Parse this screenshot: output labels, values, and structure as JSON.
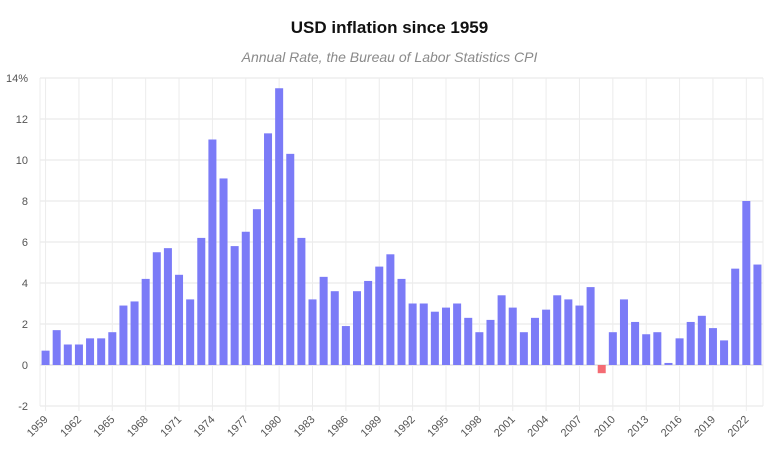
{
  "chart_data": {
    "type": "bar",
    "title": "USD inflation since 1959",
    "subtitle": "Annual Rate, the Bureau of Labor Statistics CPI",
    "xlabel": "",
    "ylabel": "",
    "ylim": [
      -2,
      14
    ],
    "y_ticks": [
      "-2",
      "0",
      "2",
      "4",
      "6",
      "8",
      "10",
      "12",
      "14%"
    ],
    "grid": true,
    "positive_color": "#7b7bf7",
    "negative_color": "#f46b73",
    "categories": [
      "1959",
      "1960",
      "1961",
      "1962",
      "1963",
      "1964",
      "1965",
      "1966",
      "1967",
      "1968",
      "1969",
      "1970",
      "1971",
      "1972",
      "1973",
      "1974",
      "1975",
      "1976",
      "1977",
      "1978",
      "1979",
      "1980",
      "1981",
      "1982",
      "1983",
      "1984",
      "1985",
      "1986",
      "1987",
      "1988",
      "1989",
      "1990",
      "1991",
      "1992",
      "1993",
      "1994",
      "1995",
      "1996",
      "1997",
      "1998",
      "1999",
      "2000",
      "2001",
      "2002",
      "2003",
      "2004",
      "2005",
      "2006",
      "2007",
      "2008",
      "2009",
      "2010",
      "2011",
      "2012",
      "2013",
      "2014",
      "2015",
      "2016",
      "2017",
      "2018",
      "2019",
      "2020",
      "2021",
      "2022",
      "2023"
    ],
    "x_tick_labels": [
      "1959",
      "1962",
      "1965",
      "1968",
      "1971",
      "1974",
      "1977",
      "1980",
      "1983",
      "1986",
      "1989",
      "1992",
      "1995",
      "1998",
      "2001",
      "2004",
      "2007",
      "2010",
      "2013",
      "2016",
      "2019",
      "2022"
    ],
    "values": [
      0.7,
      1.7,
      1.0,
      1.0,
      1.3,
      1.3,
      1.6,
      2.9,
      3.1,
      4.2,
      5.5,
      5.7,
      4.4,
      3.2,
      6.2,
      11.0,
      9.1,
      5.8,
      6.5,
      7.6,
      11.3,
      13.5,
      10.3,
      6.2,
      3.2,
      4.3,
      3.6,
      1.9,
      3.6,
      4.1,
      4.8,
      5.4,
      4.2,
      3.0,
      3.0,
      2.6,
      2.8,
      3.0,
      2.3,
      1.6,
      2.2,
      3.4,
      2.8,
      1.6,
      2.3,
      2.7,
      3.4,
      3.2,
      2.9,
      3.8,
      -0.4,
      1.6,
      3.2,
      2.1,
      1.5,
      1.6,
      0.1,
      1.3,
      2.1,
      2.4,
      1.8,
      1.2,
      4.7,
      8.0,
      4.9
    ]
  }
}
